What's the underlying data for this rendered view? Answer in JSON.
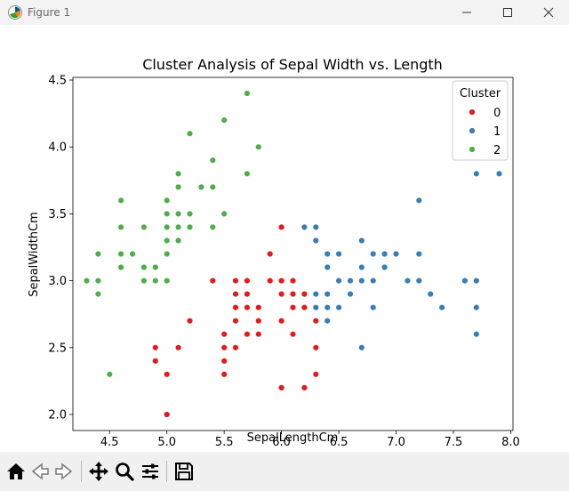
{
  "window": {
    "title": "Figure 1",
    "icons": [
      "matplotlib-figure-icon",
      "minimize-icon",
      "maximize-icon",
      "close-icon"
    ]
  },
  "toolbar": {
    "buttons": [
      {
        "name": "home-icon",
        "label": "Home"
      },
      {
        "name": "back-arrow-icon",
        "label": "Back"
      },
      {
        "name": "forward-arrow-icon",
        "label": "Forward"
      },
      {
        "name": "pan-icon",
        "label": "Pan"
      },
      {
        "name": "zoom-icon",
        "label": "Zoom"
      },
      {
        "name": "configure-subplots-icon",
        "label": "Subplots"
      },
      {
        "name": "save-icon",
        "label": "Save"
      }
    ]
  },
  "chart_data": {
    "type": "scatter",
    "title": "Cluster Analysis of Sepal Width vs. Length",
    "xlabel": "SepalLengthCm",
    "ylabel": "SepalWidthCm",
    "xlim": [
      4.18,
      8.02
    ],
    "ylim": [
      1.88,
      4.52
    ],
    "xticks": [
      4.5,
      5.0,
      5.5,
      6.0,
      6.5,
      7.0,
      7.5,
      8.0
    ],
    "xtick_labels": [
      "4.5",
      "5.0",
      "5.5",
      "6.0",
      "6.5",
      "7.0",
      "7.5",
      "8.0"
    ],
    "yticks": [
      2.0,
      2.5,
      3.0,
      3.5,
      4.0,
      4.5
    ],
    "ytick_labels": [
      "2.0",
      "2.5",
      "3.0",
      "3.5",
      "4.0",
      "4.5"
    ],
    "grid": false,
    "legend": {
      "title": "Cluster",
      "position": "top-right"
    },
    "series": [
      {
        "name": "0",
        "color": "#e41a1c",
        "points": [
          [
            4.9,
            2.5
          ],
          [
            4.9,
            2.4
          ],
          [
            5.0,
            2.3
          ],
          [
            5.0,
            2.0
          ],
          [
            5.1,
            2.5
          ],
          [
            5.2,
            2.7
          ],
          [
            5.4,
            3.0
          ],
          [
            5.5,
            2.6
          ],
          [
            5.5,
            2.5
          ],
          [
            5.5,
            2.4
          ],
          [
            5.5,
            2.3
          ],
          [
            5.6,
            3.0
          ],
          [
            5.6,
            2.9
          ],
          [
            5.6,
            2.8
          ],
          [
            5.6,
            2.7
          ],
          [
            5.6,
            2.5
          ],
          [
            5.7,
            3.0
          ],
          [
            5.7,
            2.9
          ],
          [
            5.7,
            2.8
          ],
          [
            5.7,
            2.6
          ],
          [
            5.8,
            2.8
          ],
          [
            5.8,
            2.7
          ],
          [
            5.8,
            2.6
          ],
          [
            5.9,
            3.2
          ],
          [
            5.9,
            3.0
          ],
          [
            6.0,
            3.4
          ],
          [
            6.0,
            3.0
          ],
          [
            6.0,
            2.9
          ],
          [
            6.0,
            2.7
          ],
          [
            6.0,
            2.2
          ],
          [
            6.1,
            3.0
          ],
          [
            6.1,
            2.9
          ],
          [
            6.1,
            2.8
          ],
          [
            6.1,
            2.6
          ],
          [
            6.2,
            2.9
          ],
          [
            6.2,
            2.8
          ],
          [
            6.2,
            2.2
          ],
          [
            6.3,
            2.7
          ],
          [
            6.3,
            2.5
          ],
          [
            6.3,
            2.3
          ]
        ]
      },
      {
        "name": "1",
        "color": "#377eb8",
        "points": [
          [
            6.2,
            3.4
          ],
          [
            6.3,
            3.4
          ],
          [
            6.3,
            3.3
          ],
          [
            6.3,
            2.9
          ],
          [
            6.3,
            2.8
          ],
          [
            6.4,
            3.2
          ],
          [
            6.4,
            3.1
          ],
          [
            6.4,
            2.9
          ],
          [
            6.4,
            2.8
          ],
          [
            6.4,
            2.7
          ],
          [
            6.5,
            3.2
          ],
          [
            6.5,
            3.0
          ],
          [
            6.5,
            2.8
          ],
          [
            6.6,
            3.0
          ],
          [
            6.6,
            2.9
          ],
          [
            6.7,
            3.3
          ],
          [
            6.7,
            3.1
          ],
          [
            6.7,
            3.0
          ],
          [
            6.7,
            2.5
          ],
          [
            6.8,
            3.2
          ],
          [
            6.8,
            3.0
          ],
          [
            6.8,
            2.8
          ],
          [
            6.9,
            3.2
          ],
          [
            6.9,
            3.1
          ],
          [
            7.0,
            3.2
          ],
          [
            7.1,
            3.0
          ],
          [
            7.2,
            3.6
          ],
          [
            7.2,
            3.2
          ],
          [
            7.2,
            3.0
          ],
          [
            7.3,
            2.9
          ],
          [
            7.4,
            2.8
          ],
          [
            7.6,
            3.0
          ],
          [
            7.7,
            3.8
          ],
          [
            7.7,
            3.0
          ],
          [
            7.7,
            2.8
          ],
          [
            7.7,
            2.6
          ],
          [
            7.9,
            3.8
          ]
        ]
      },
      {
        "name": "2",
        "color": "#4daf4a",
        "points": [
          [
            4.3,
            3.0
          ],
          [
            4.4,
            3.2
          ],
          [
            4.4,
            3.0
          ],
          [
            4.4,
            2.9
          ],
          [
            4.5,
            2.3
          ],
          [
            4.6,
            3.6
          ],
          [
            4.6,
            3.4
          ],
          [
            4.6,
            3.2
          ],
          [
            4.6,
            3.1
          ],
          [
            4.7,
            3.2
          ],
          [
            4.8,
            3.4
          ],
          [
            4.8,
            3.1
          ],
          [
            4.8,
            3.0
          ],
          [
            4.9,
            3.1
          ],
          [
            4.9,
            3.0
          ],
          [
            5.0,
            3.6
          ],
          [
            5.0,
            3.5
          ],
          [
            5.0,
            3.4
          ],
          [
            5.0,
            3.3
          ],
          [
            5.0,
            3.2
          ],
          [
            5.0,
            3.0
          ],
          [
            5.1,
            3.8
          ],
          [
            5.1,
            3.7
          ],
          [
            5.1,
            3.5
          ],
          [
            5.1,
            3.4
          ],
          [
            5.1,
            3.3
          ],
          [
            5.2,
            4.1
          ],
          [
            5.2,
            3.5
          ],
          [
            5.2,
            3.4
          ],
          [
            5.3,
            3.7
          ],
          [
            5.4,
            3.9
          ],
          [
            5.4,
            3.7
          ],
          [
            5.4,
            3.4
          ],
          [
            5.5,
            4.2
          ],
          [
            5.5,
            3.5
          ],
          [
            5.7,
            4.4
          ],
          [
            5.7,
            3.8
          ],
          [
            5.8,
            4.0
          ]
        ]
      }
    ]
  }
}
